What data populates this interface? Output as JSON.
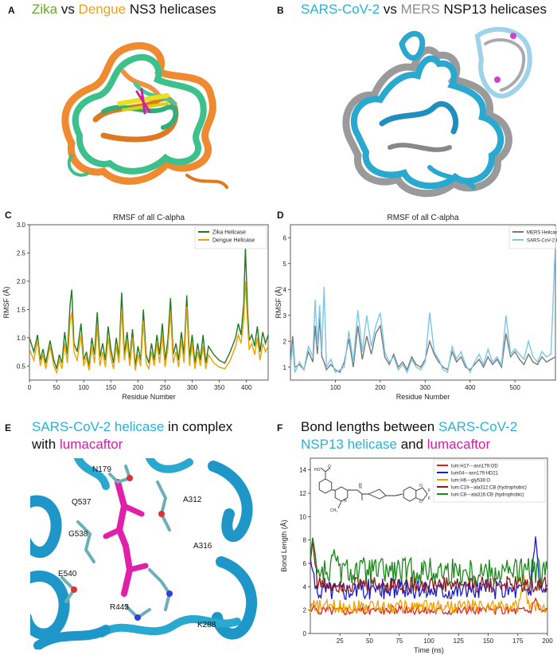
{
  "panels": {
    "A": {
      "letter": "A",
      "title_parts": [
        {
          "text": "Zika",
          "color": "#6aa629"
        },
        {
          "text": " vs ",
          "color": "#111111"
        },
        {
          "text": "Dengue",
          "color": "#f0a020"
        },
        {
          "text": " NS3 helicases",
          "color": "#111111"
        }
      ]
    },
    "B": {
      "letter": "B",
      "title_parts": [
        {
          "text": "SARS-CoV-2",
          "color": "#2bb1d6"
        },
        {
          "text": " vs ",
          "color": "#111111"
        },
        {
          "text": "MERS",
          "color": "#8a8a8a"
        },
        {
          "text": " NSP13 helicases",
          "color": "#111111"
        }
      ]
    },
    "C": {
      "letter": "C"
    },
    "D": {
      "letter": "D"
    },
    "E": {
      "letter": "E",
      "title_line1": [
        {
          "text": "SARS-CoV-2 helicase",
          "color": "#2bb1d6"
        },
        {
          "text": " in complex",
          "color": "#111111"
        }
      ],
      "title_line2": [
        {
          "text": "with ",
          "color": "#111111"
        },
        {
          "text": "lumacaftor",
          "color": "#d020a0"
        }
      ],
      "residue_labels": [
        "N179",
        "Q537",
        "A312",
        "G538",
        "A316",
        "E540",
        "R443",
        "K288"
      ]
    },
    "F": {
      "letter": "F",
      "title_line1": [
        {
          "text": "Bond lengths between ",
          "color": "#111111"
        },
        {
          "text": "SARS-CoV-2",
          "color": "#2bb1d6"
        }
      ],
      "title_line2": [
        {
          "text": "NSP13 helicase",
          "color": "#2bb1d6"
        },
        {
          "text": " and ",
          "color": "#111111"
        },
        {
          "text": "lumacaftor",
          "color": "#d020a0"
        }
      ]
    }
  },
  "chart_data": [
    {
      "id": "C",
      "type": "line",
      "title": "RMSF of all C-alpha",
      "xlabel": "Residue Number",
      "ylabel": "RMSF (Å)",
      "xlim": [
        0,
        440
      ],
      "ylim": [
        0.25,
        3.0
      ],
      "xticks": [
        0,
        50,
        100,
        150,
        200,
        250,
        300,
        350,
        400
      ],
      "yticks": [
        0.5,
        1.0,
        1.5,
        2.0,
        2.5,
        3.0
      ],
      "ytick_labels": [
        "0.5",
        "1.0",
        "1.5",
        "2.0",
        "2.5",
        "3.0"
      ],
      "legend_position": "top-right",
      "series": [
        {
          "name": "Zika Helicase",
          "color": "#1f7a1f",
          "x": [
            0,
            8,
            15,
            20,
            25,
            30,
            38,
            45,
            50,
            55,
            60,
            65,
            70,
            75,
            78,
            82,
            88,
            95,
            100,
            105,
            110,
            115,
            120,
            125,
            130,
            135,
            140,
            145,
            150,
            155,
            160,
            165,
            170,
            175,
            180,
            185,
            190,
            195,
            200,
            205,
            210,
            215,
            220,
            225,
            230,
            235,
            240,
            245,
            250,
            255,
            260,
            265,
            270,
            275,
            280,
            285,
            290,
            295,
            300,
            305,
            310,
            315,
            320,
            325,
            330,
            340,
            350,
            360,
            370,
            380,
            385,
            390,
            395,
            398,
            402,
            405,
            410,
            415,
            420,
            425,
            430,
            435,
            440
          ],
          "y": [
            1.0,
            0.75,
            1.05,
            0.6,
            0.8,
            0.55,
            0.95,
            0.6,
            0.45,
            0.7,
            0.55,
            1.1,
            0.7,
            1.6,
            1.85,
            0.9,
            0.75,
            1.25,
            0.6,
            0.75,
            0.5,
            1.0,
            0.7,
            1.45,
            0.65,
            0.9,
            0.6,
            1.2,
            0.8,
            0.55,
            1.0,
            0.65,
            1.8,
            0.7,
            1.1,
            0.6,
            1.15,
            0.5,
            0.85,
            0.6,
            1.5,
            0.7,
            0.55,
            0.9,
            0.6,
            1.05,
            0.7,
            1.25,
            0.6,
            0.95,
            1.7,
            0.7,
            0.9,
            0.6,
            1.1,
            0.7,
            1.75,
            0.65,
            1.05,
            0.55,
            0.9,
            0.6,
            1.05,
            0.55,
            0.85,
            0.7,
            0.6,
            0.55,
            0.75,
            1.0,
            1.25,
            1.05,
            1.6,
            2.6,
            1.5,
            0.95,
            1.05,
            0.85,
            1.2,
            0.75,
            1.1,
            0.9,
            1.05
          ]
        },
        {
          "name": "Dengue Helicase",
          "color": "#f0a000",
          "x": [
            0,
            8,
            15,
            20,
            25,
            30,
            38,
            45,
            50,
            55,
            60,
            65,
            70,
            75,
            78,
            82,
            88,
            95,
            100,
            105,
            110,
            115,
            120,
            125,
            130,
            135,
            140,
            145,
            150,
            155,
            160,
            165,
            170,
            175,
            180,
            185,
            190,
            195,
            200,
            205,
            210,
            215,
            220,
            225,
            230,
            235,
            240,
            245,
            250,
            255,
            260,
            265,
            270,
            275,
            280,
            285,
            290,
            295,
            300,
            305,
            310,
            315,
            320,
            325,
            330,
            340,
            350,
            360,
            370,
            380,
            385,
            390,
            395,
            398,
            402,
            405,
            410,
            415,
            420,
            425,
            430,
            435,
            440
          ],
          "y": [
            0.8,
            0.6,
            0.95,
            0.5,
            0.7,
            0.45,
            0.85,
            0.5,
            0.38,
            0.6,
            0.45,
            0.9,
            0.55,
            1.3,
            1.45,
            0.75,
            0.6,
            1.05,
            0.5,
            0.65,
            0.42,
            0.85,
            0.55,
            1.2,
            0.5,
            0.75,
            0.48,
            1.0,
            0.65,
            0.45,
            0.85,
            0.55,
            1.5,
            0.6,
            0.95,
            0.5,
            1.0,
            0.42,
            0.7,
            0.5,
            1.3,
            0.55,
            0.45,
            0.75,
            0.5,
            0.9,
            0.55,
            1.05,
            0.48,
            0.8,
            1.45,
            0.55,
            0.75,
            0.48,
            0.95,
            0.55,
            1.55,
            0.5,
            0.9,
            0.45,
            0.75,
            0.5,
            0.85,
            0.45,
            0.7,
            0.55,
            0.48,
            0.45,
            0.6,
            0.85,
            1.05,
            0.9,
            1.3,
            2.0,
            1.25,
            0.8,
            0.9,
            0.7,
            1.0,
            0.6,
            0.9,
            0.75,
            0.85
          ]
        }
      ]
    },
    {
      "id": "D",
      "type": "line",
      "title": "RMSF of all C-alpha",
      "xlabel": "Residue Number",
      "ylabel": "RMSF (Å)",
      "xlim": [
        0,
        590
      ],
      "ylim": [
        0.5,
        6.5
      ],
      "xticks": [
        100,
        200,
        300,
        400,
        500
      ],
      "yticks": [
        1,
        2,
        3,
        4,
        5,
        6
      ],
      "ytick_labels": [
        "1",
        "2",
        "3",
        "4",
        "5",
        "6"
      ],
      "legend_position": "top-left",
      "series": [
        {
          "name": "MERS Helicase",
          "color": "#777777",
          "x": [
            0,
            5,
            10,
            20,
            30,
            40,
            50,
            55,
            60,
            65,
            70,
            75,
            80,
            90,
            100,
            110,
            120,
            130,
            140,
            150,
            160,
            170,
            180,
            190,
            200,
            210,
            220,
            230,
            240,
            250,
            260,
            270,
            280,
            290,
            300,
            310,
            320,
            330,
            340,
            350,
            360,
            370,
            380,
            390,
            400,
            410,
            420,
            430,
            440,
            450,
            460,
            470,
            480,
            490,
            500,
            510,
            520,
            530,
            540,
            550,
            560,
            570,
            580,
            590
          ],
          "y": [
            1.2,
            2.2,
            1.0,
            1.1,
            0.9,
            1.6,
            1.2,
            2.6,
            1.5,
            2.9,
            1.4,
            1.2,
            0.9,
            1.1,
            0.9,
            0.8,
            1.2,
            2.1,
            1.0,
            2.6,
            1.3,
            2.2,
            1.5,
            2.3,
            2.6,
            1.4,
            1.1,
            1.5,
            1.0,
            1.2,
            0.9,
            1.4,
            1.1,
            1.0,
            1.3,
            2.0,
            1.5,
            1.2,
            1.0,
            0.9,
            1.6,
            1.2,
            1.4,
            1.0,
            0.9,
            1.1,
            1.3,
            1.0,
            1.4,
            1.1,
            1.3,
            1.0,
            2.3,
            1.4,
            1.6,
            1.3,
            1.1,
            1.5,
            1.2,
            1.1,
            1.4,
            1.2,
            1.3,
            1.4
          ]
        },
        {
          "name": "SARS-CoV-2 Helicase",
          "color": "#7cc7e6",
          "x": [
            0,
            5,
            10,
            20,
            30,
            40,
            50,
            55,
            60,
            65,
            70,
            75,
            80,
            90,
            100,
            110,
            120,
            130,
            140,
            150,
            160,
            170,
            180,
            190,
            200,
            210,
            220,
            230,
            240,
            250,
            260,
            270,
            280,
            290,
            300,
            310,
            320,
            330,
            340,
            350,
            360,
            370,
            380,
            390,
            400,
            410,
            420,
            430,
            440,
            450,
            460,
            470,
            480,
            490,
            500,
            510,
            520,
            530,
            540,
            550,
            560,
            570,
            580,
            590
          ],
          "y": [
            1.0,
            1.9,
            0.8,
            1.2,
            0.9,
            1.8,
            1.4,
            3.6,
            1.8,
            3.4,
            1.6,
            4.1,
            1.0,
            1.3,
            0.8,
            0.9,
            1.0,
            2.4,
            1.2,
            3.2,
            1.6,
            3.0,
            1.8,
            2.6,
            3.1,
            1.6,
            1.2,
            1.4,
            0.9,
            1.1,
            0.8,
            1.3,
            1.0,
            0.9,
            1.2,
            3.1,
            1.6,
            1.3,
            0.9,
            0.8,
            1.8,
            1.3,
            1.6,
            1.1,
            0.8,
            1.2,
            1.5,
            1.1,
            1.7,
            1.2,
            1.4,
            1.1,
            3.0,
            1.5,
            1.7,
            1.5,
            1.3,
            2.0,
            1.4,
            1.2,
            1.6,
            1.4,
            1.5,
            5.8
          ]
        }
      ]
    },
    {
      "id": "F",
      "type": "line",
      "title": "",
      "xlabel": "Time (ns)",
      "ylabel": "Bond Length (Å)",
      "xlim": [
        0,
        200
      ],
      "ylim": [
        0,
        15
      ],
      "xticks": [
        25,
        50,
        75,
        100,
        125,
        150,
        175,
        200
      ],
      "yticks": [
        0,
        2,
        4,
        6,
        8,
        10,
        12,
        14
      ],
      "ytick_labels": [
        "0",
        "2",
        "4",
        "6",
        "8",
        "10",
        "12",
        "14"
      ],
      "legend_position": "top-right",
      "series": [
        {
          "name": "lum:H17---asn179:OD",
          "color": "#e02020",
          "base": 2.0,
          "amp": 0.4,
          "spike": [
            [
              190,
              3.0
            ]
          ]
        },
        {
          "name": "lum04---asn179:HD21",
          "color": "#1a1ad0",
          "base": 3.8,
          "amp": 0.9,
          "spike": [
            [
              0,
              6.5
            ],
            [
              190,
              8.3
            ]
          ]
        },
        {
          "name": "lum:H6---gly538:O",
          "color": "#f0a000",
          "base": 2.3,
          "amp": 0.6,
          "spike": [
            [
              180,
              5.0
            ]
          ]
        },
        {
          "name": "lum:C19---ala312:CB (hydrophobic)",
          "color": "#8b1a1a",
          "base": 4.2,
          "amp": 0.7,
          "spike": [
            [
              2,
              8.0
            ]
          ]
        },
        {
          "name": "lum:C8---ala316:CB (hydrophobic)",
          "color": "#1a8a1a",
          "base": 5.3,
          "amp": 1.2,
          "spike": [
            [
              2,
              8.2
            ],
            [
              20,
              7.2
            ]
          ]
        }
      ]
    }
  ],
  "molecule_labels": {
    "carbonyl": "O",
    "hydroxyl": "HO",
    "amide_n": "N",
    "amide_h": "H",
    "pyridine_n": "N",
    "f1": "F",
    "f2": "F",
    "oxy1": "O",
    "oxy2": "O",
    "methyl": "CH₃"
  }
}
